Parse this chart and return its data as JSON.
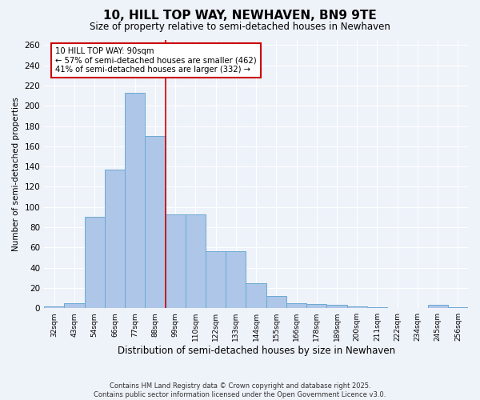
{
  "title": "10, HILL TOP WAY, NEWHAVEN, BN9 9TE",
  "subtitle": "Size of property relative to semi-detached houses in Newhaven",
  "xlabel": "Distribution of semi-detached houses by size in Newhaven",
  "ylabel": "Number of semi-detached properties",
  "categories": [
    "32sqm",
    "43sqm",
    "54sqm",
    "66sqm",
    "77sqm",
    "88sqm",
    "99sqm",
    "110sqm",
    "122sqm",
    "133sqm",
    "144sqm",
    "155sqm",
    "166sqm",
    "178sqm",
    "189sqm",
    "200sqm",
    "211sqm",
    "222sqm",
    "234sqm",
    "245sqm",
    "256sqm"
  ],
  "values": [
    2,
    5,
    90,
    137,
    213,
    170,
    93,
    93,
    56,
    56,
    25,
    12,
    5,
    4,
    3,
    2,
    1,
    0,
    0,
    3,
    1
  ],
  "bar_color": "#aec6e8",
  "bar_edge_color": "#6aaad4",
  "property_label": "10 HILL TOP WAY: 90sqm",
  "pct_smaller": 57,
  "n_smaller": 462,
  "pct_larger": 41,
  "n_larger": 332,
  "vline_bin_index": 5,
  "vline_color": "#cc0000",
  "annotation_box_color": "#cc0000",
  "ylim": [
    0,
    260
  ],
  "yticks": [
    0,
    20,
    40,
    60,
    80,
    100,
    120,
    140,
    160,
    180,
    200,
    220,
    240,
    260
  ],
  "background_color": "#eef2f9",
  "grid_color": "#ffffff",
  "footer_line1": "Contains HM Land Registry data © Crown copyright and database right 2025.",
  "footer_line2": "Contains public sector information licensed under the Open Government Licence v3.0."
}
